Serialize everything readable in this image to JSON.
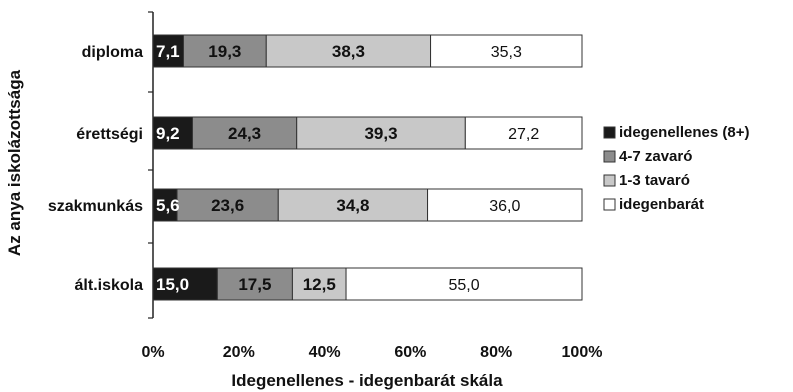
{
  "chart_data": {
    "type": "bar",
    "orientation": "horizontal",
    "stacked": "percent",
    "title": "",
    "xlabel": "Idegenellenes  -  idegenbarát  skála",
    "ylabel": "Az anya iskolázottsága",
    "xlim": [
      0,
      100
    ],
    "x_ticks": [
      "0%",
      "20%",
      "40%",
      "60%",
      "80%",
      "100%"
    ],
    "grid": false,
    "legend_position": "right",
    "categories": [
      "diploma",
      "érettségi",
      "szakmunkás",
      "ált.iskola"
    ],
    "series": [
      {
        "name": "idegenellenes (8+)",
        "color": "#1a1a1a",
        "values": [
          7.1,
          9.2,
          5.6,
          15.0
        ],
        "labels": [
          "7,1",
          "9,2",
          "5,6",
          "15,0"
        ]
      },
      {
        "name": "4-7 zavaró",
        "color": "#8c8c8c",
        "values": [
          19.3,
          24.3,
          23.6,
          17.5
        ],
        "labels": [
          "19,3",
          "24,3",
          "23,6",
          "17,5"
        ]
      },
      {
        "name": "1-3 tavaró",
        "color": "#c8c8c8",
        "values": [
          38.3,
          39.3,
          34.8,
          12.5
        ],
        "labels": [
          "38,3",
          "39,3",
          "34,8",
          "12,5"
        ]
      },
      {
        "name": "idegenbarát",
        "color": "#ffffff",
        "values": [
          35.3,
          27.2,
          36.0,
          55.0
        ],
        "labels": [
          "35,3",
          "27,2",
          "36,0",
          "55,0"
        ]
      }
    ]
  }
}
